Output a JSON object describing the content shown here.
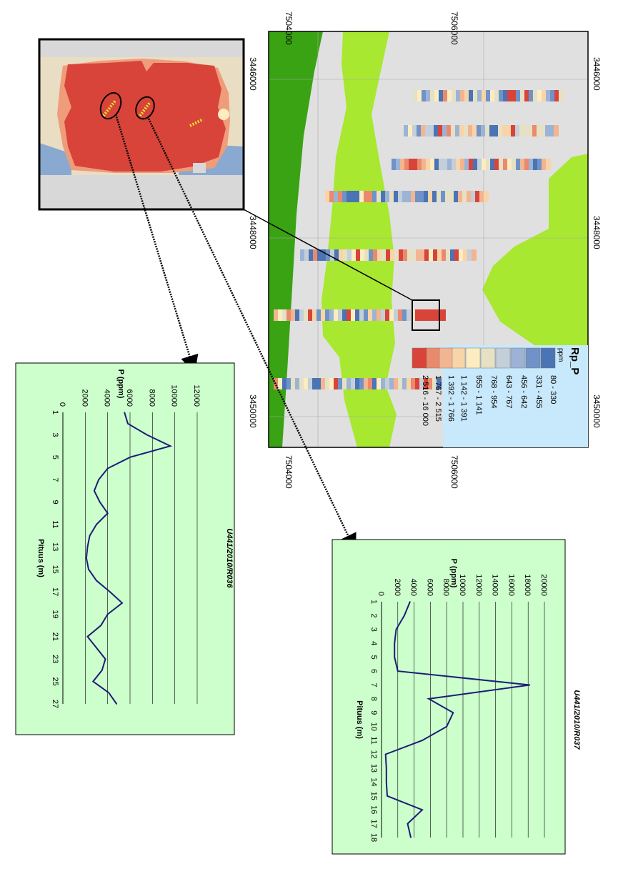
{
  "map": {
    "axis_top": [
      "7504000",
      "7506000"
    ],
    "axis_bottom": [
      "7504000",
      "7506000"
    ],
    "axis_right": [
      "3446000",
      "3448000",
      "3450000"
    ],
    "axis_left": [
      "3446000",
      "3448000",
      "3450000"
    ]
  },
  "legend": {
    "title": "Rp_P",
    "unit": "ppm",
    "classes": [
      {
        "label": "80 - 330",
        "color": "#4a74b4"
      },
      {
        "label": "331 - 455",
        "color": "#6f93c8"
      },
      {
        "label": "456 - 642",
        "color": "#9cb3d6"
      },
      {
        "label": "643 - 767",
        "color": "#c3cfd9"
      },
      {
        "label": "768 - 954",
        "color": "#e6e1c4"
      },
      {
        "label": "955 - 1 141",
        "color": "#fbedc1"
      },
      {
        "label": "1 142 - 1 391",
        "color": "#f8d5a8"
      },
      {
        "label": "1 392 - 1 766",
        "color": "#f3b591"
      },
      {
        "label": "1 767 - 2 515",
        "color": "#ea8a6d"
      },
      {
        "label": "2 516 - 16 000",
        "color": "#d8443a"
      }
    ]
  },
  "colors": {
    "bedrock_dark": "#3aa314",
    "bedrock_light": "#a8e830",
    "background": "#e0e0e0",
    "legend_bg": "#c8e8fb",
    "chart_bg": "#ccffcc",
    "line": "#1c1c78"
  },
  "chart_data": [
    {
      "type": "line",
      "title": "U441/2010/R036",
      "xlabel": "Pituus (m)",
      "ylabel": "P (ppm)",
      "categories": [
        1,
        3,
        5,
        7,
        9,
        11,
        13,
        15,
        17,
        19,
        21,
        23,
        25,
        27
      ],
      "x": [
        1,
        2,
        3,
        4,
        5,
        6,
        7,
        8,
        9,
        10,
        11,
        12,
        13,
        14,
        15,
        16,
        17,
        18,
        19,
        20,
        21,
        22,
        23,
        24,
        25,
        26,
        27
      ],
      "y": [
        5500,
        5800,
        7500,
        9600,
        6000,
        4000,
        3200,
        2800,
        3300,
        4000,
        3000,
        2400,
        2200,
        2100,
        2300,
        3000,
        4200,
        5300,
        4000,
        3400,
        2200,
        3000,
        3800,
        3500,
        2700,
        4100,
        4800
      ],
      "ylim": [
        0,
        12000
      ],
      "yticks": [
        "0",
        "2000",
        "4000",
        "6000",
        "8000",
        "10000",
        "12000"
      ],
      "grid": true
    },
    {
      "type": "line",
      "title": "U441/2010/R037",
      "xlabel": "Pituus (m)",
      "ylabel": "P (ppm)",
      "categories": [
        1,
        2,
        3,
        4,
        5,
        6,
        7,
        8,
        9,
        10,
        11,
        12,
        13,
        14,
        15,
        16,
        17,
        18
      ],
      "x": [
        1,
        2,
        3,
        4,
        5,
        6,
        7,
        8,
        9,
        10,
        11,
        12,
        13,
        14,
        15,
        16,
        17,
        18
      ],
      "y": [
        3500,
        2800,
        1800,
        1600,
        1600,
        2000,
        18200,
        5800,
        8800,
        8000,
        5000,
        500,
        600,
        600,
        700,
        5000,
        3200,
        3600
      ],
      "ylim": [
        0,
        20000
      ],
      "yticks": [
        "0",
        "2000",
        "4000",
        "6000",
        "8000",
        "10000",
        "12000",
        "14000",
        "16000",
        "18000",
        "20000"
      ],
      "grid": true
    }
  ]
}
